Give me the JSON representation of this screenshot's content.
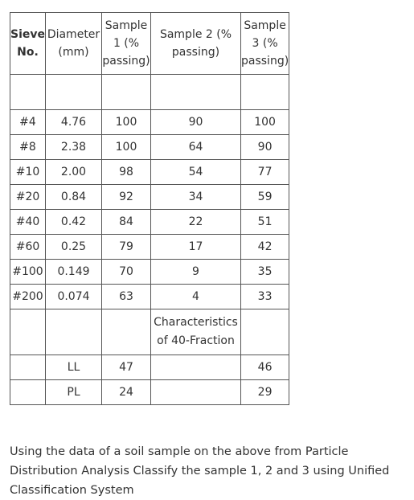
{
  "table": {
    "headers": {
      "sieve": [
        "Sieve",
        "No."
      ],
      "diameter": [
        "Diameter",
        "(mm)"
      ],
      "sample1": [
        "Sample",
        "1 (%",
        "passing)"
      ],
      "sample2": [
        "Sample 2 (%",
        "passing)"
      ],
      "sample3": [
        "Sample",
        "3 (%",
        "passing)"
      ]
    },
    "rows": [
      {
        "sieve": "#4",
        "diameter": "4.76",
        "s1": "100",
        "s2": "90",
        "s3": "100"
      },
      {
        "sieve": "#8",
        "diameter": "2.38",
        "s1": "100",
        "s2": "64",
        "s3": "90"
      },
      {
        "sieve": "#10",
        "diameter": "2.00",
        "s1": "98",
        "s2": "54",
        "s3": "77"
      },
      {
        "sieve": "#20",
        "diameter": "0.84",
        "s1": "92",
        "s2": "34",
        "s3": "59"
      },
      {
        "sieve": "#40",
        "diameter": "0.42",
        "s1": "84",
        "s2": "22",
        "s3": "51"
      },
      {
        "sieve": "#60",
        "diameter": "0.25",
        "s1": "79",
        "s2": "17",
        "s3": "42"
      },
      {
        "sieve": "#100",
        "diameter": "0.149",
        "s1": "70",
        "s2": "9",
        "s3": "35"
      },
      {
        "sieve": "#200",
        "diameter": "0.074",
        "s1": "63",
        "s2": "4",
        "s3": "33"
      }
    ],
    "characteristics_label": [
      "Characteristics",
      "of 40-Fraction"
    ],
    "ll": {
      "label": "LL",
      "s1": "47",
      "s2": "",
      "s3": "46"
    },
    "pl": {
      "label": "PL",
      "s1": "24",
      "s2": "",
      "s3": "29"
    }
  },
  "question": "Using the data of a soil sample on the above from Particle Distribution Analysis Classify the sample 1, 2 and 3 using Unified Classification System"
}
